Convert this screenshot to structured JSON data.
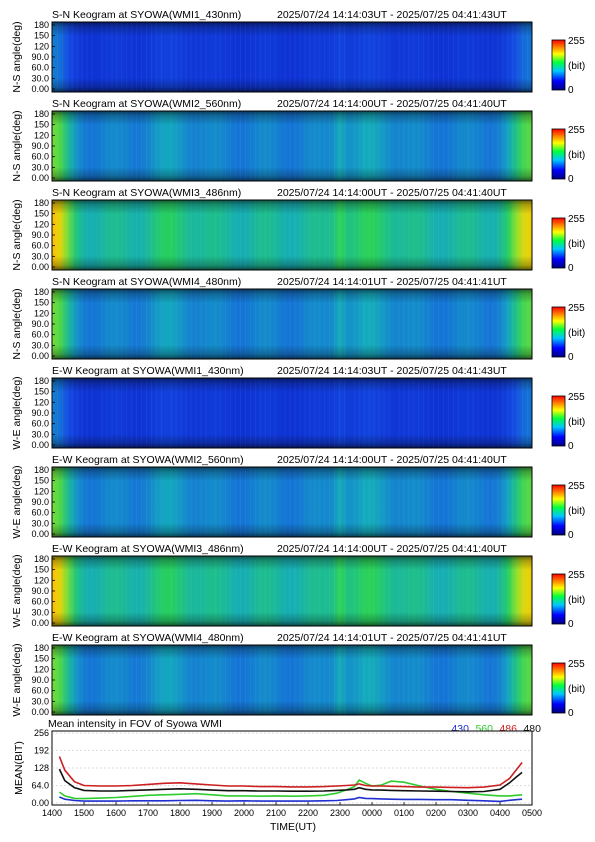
{
  "panels": [
    {
      "title": "S-N Keogram at SYOWA(WMI1_430nm)",
      "range": "2025/07/24 14:14:03UT - 2025/07/25 04:41:43UT",
      "ylabel": "N-S angle(deg)",
      "brightness": 0.6
    },
    {
      "title": "S-N Keogram at SYOWA(WMI2_560nm)",
      "range": "2025/07/24 14:14:00UT - 2025/07/25 04:41:40UT",
      "ylabel": "N-S angle(deg)",
      "brightness": 1.05
    },
    {
      "title": "S-N Keogram at SYOWA(WMI3_486nm)",
      "range": "2025/07/24 14:14:00UT - 2025/07/25 04:41:40UT",
      "ylabel": "N-S angle(deg)",
      "brightness": 1.35
    },
    {
      "title": "S-N Keogram at SYOWA(WMI4_480nm)",
      "range": "2025/07/24 14:14:01UT - 2025/07/25 04:41:41UT",
      "ylabel": "N-S angle(deg)",
      "brightness": 1.05
    },
    {
      "title": "E-W Keogram at SYOWA(WMI1_430nm)",
      "range": "2025/07/24 14:14:03UT - 2025/07/25 04:41:43UT",
      "ylabel": "W-E angle(deg)",
      "brightness": 0.6
    },
    {
      "title": "E-W Keogram at SYOWA(WMI2_560nm)",
      "range": "2025/07/24 14:14:00UT - 2025/07/25 04:41:40UT",
      "ylabel": "W-E angle(deg)",
      "brightness": 1.05
    },
    {
      "title": "E-W Keogram at SYOWA(WMI3_486nm)",
      "range": "2025/07/24 14:14:00UT - 2025/07/25 04:41:40UT",
      "ylabel": "W-E angle(deg)",
      "brightness": 1.35
    },
    {
      "title": "E-W Keogram at SYOWA(WMI4_480nm)",
      "range": "2025/07/24 14:14:01UT - 2025/07/25 04:41:41UT",
      "ylabel": "W-E angle(deg)",
      "brightness": 1.05
    }
  ],
  "keogram_yticks": [
    "180",
    "150",
    "120",
    "90.0",
    "60.0",
    "30.0",
    "0.00"
  ],
  "colorbar": {
    "max_label": "255",
    "unit_label": "(bit)",
    "min_label": "0"
  },
  "chart_data": {
    "type": "line",
    "title": "Mean intensity in FOV of Syowa WMI",
    "xlabel": "TIME(UT)",
    "ylabel": "MEAN(BIT)",
    "ylim": [
      0,
      256
    ],
    "yticks": [
      0,
      64,
      128,
      192,
      256
    ],
    "ytick_labels": [
      "0.00",
      "64.0",
      "128",
      "192",
      "256"
    ],
    "xlim": [
      14.0,
      29.0
    ],
    "xticks": [
      14,
      15,
      16,
      17,
      18,
      19,
      20,
      21,
      22,
      23,
      24,
      25,
      26,
      27,
      28,
      29
    ],
    "xtick_labels": [
      "1400",
      "1500",
      "1600",
      "1700",
      "1800",
      "1900",
      "2000",
      "2100",
      "2200",
      "2300",
      "0000",
      "0100",
      "0200",
      "0300",
      "0400",
      "0500"
    ],
    "x": [
      14.23,
      14.4,
      14.7,
      15.0,
      15.5,
      16.0,
      16.5,
      17.0,
      17.5,
      18.0,
      18.5,
      19.0,
      19.5,
      20.0,
      20.5,
      21.0,
      21.5,
      22.0,
      22.5,
      22.9,
      23.2,
      23.45,
      23.6,
      23.8,
      24.0,
      24.3,
      24.6,
      25.0,
      25.5,
      26.0,
      26.5,
      27.0,
      27.5,
      28.0,
      28.3,
      28.5,
      28.69
    ],
    "series": [
      {
        "name": "430",
        "color": "#1f2fd0",
        "values": [
          22,
          14,
          9,
          7,
          7,
          7,
          8,
          8,
          8,
          9,
          10,
          8,
          7,
          8,
          7,
          7,
          7,
          7,
          8,
          9,
          12,
          15,
          20,
          17,
          16,
          15,
          14,
          13,
          13,
          12,
          12,
          10,
          8,
          6,
          10,
          12,
          14
        ]
      },
      {
        "name": "560",
        "color": "#2ecc2e",
        "values": [
          40,
          26,
          17,
          16,
          18,
          20,
          24,
          28,
          30,
          32,
          34,
          30,
          26,
          26,
          25,
          26,
          25,
          26,
          28,
          36,
          48,
          60,
          84,
          72,
          62,
          66,
          80,
          76,
          62,
          50,
          42,
          36,
          30,
          26,
          26,
          28,
          30
        ]
      },
      {
        "name": "486",
        "color": "#cc1f1f",
        "values": [
          170,
          120,
          78,
          64,
          62,
          62,
          64,
          68,
          72,
          74,
          70,
          66,
          62,
          62,
          60,
          60,
          59,
          59,
          60,
          62,
          64,
          66,
          70,
          64,
          62,
          62,
          61,
          60,
          58,
          58,
          57,
          56,
          58,
          66,
          90,
          120,
          148
        ]
      },
      {
        "name": "480",
        "color": "#111111",
        "values": [
          124,
          82,
          56,
          46,
          44,
          44,
          46,
          48,
          50,
          52,
          50,
          47,
          45,
          45,
          44,
          44,
          43,
          43,
          44,
          46,
          48,
          50,
          56,
          50,
          48,
          47,
          46,
          45,
          44,
          43,
          42,
          41,
          42,
          50,
          74,
          94,
          112
        ]
      }
    ]
  }
}
